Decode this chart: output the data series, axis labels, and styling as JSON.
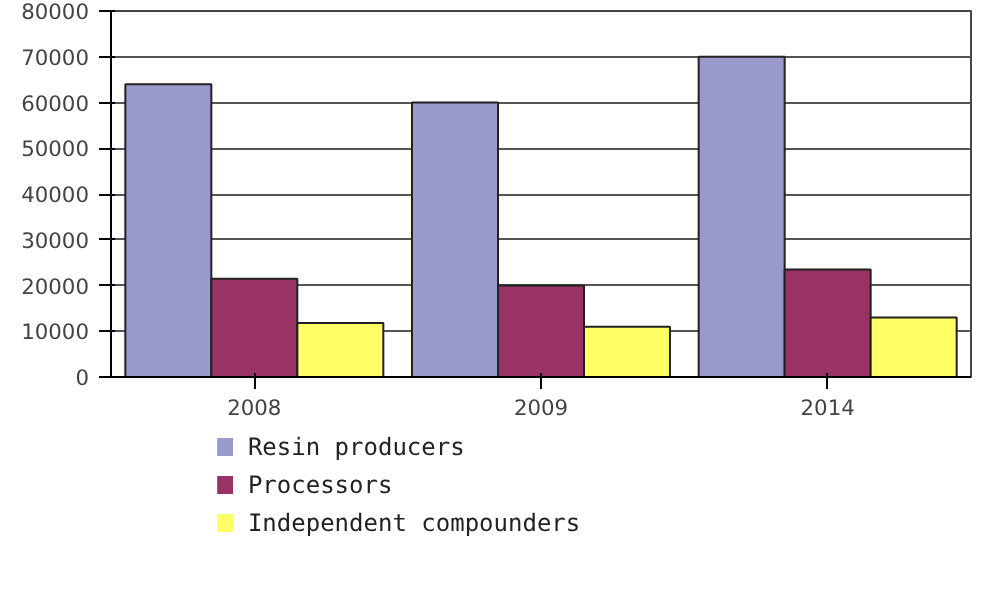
{
  "chart_data": {
    "type": "bar",
    "categories": [
      "2008",
      "2009",
      "2014"
    ],
    "series": [
      {
        "name": "Resin producers",
        "color": "#9999cc",
        "values": [
          64000,
          60000,
          70000
        ]
      },
      {
        "name": "Processors",
        "color": "#993366",
        "values": [
          21500,
          20000,
          23500
        ]
      },
      {
        "name": "Independent compounders",
        "color": "#ffff66",
        "values": [
          11800,
          11000,
          13000
        ]
      }
    ],
    "ylim": [
      0,
      80000
    ],
    "yticks": [
      0,
      10000,
      20000,
      30000,
      40000,
      50000,
      60000,
      70000,
      80000
    ],
    "grid": "y",
    "legend": "bottom"
  }
}
